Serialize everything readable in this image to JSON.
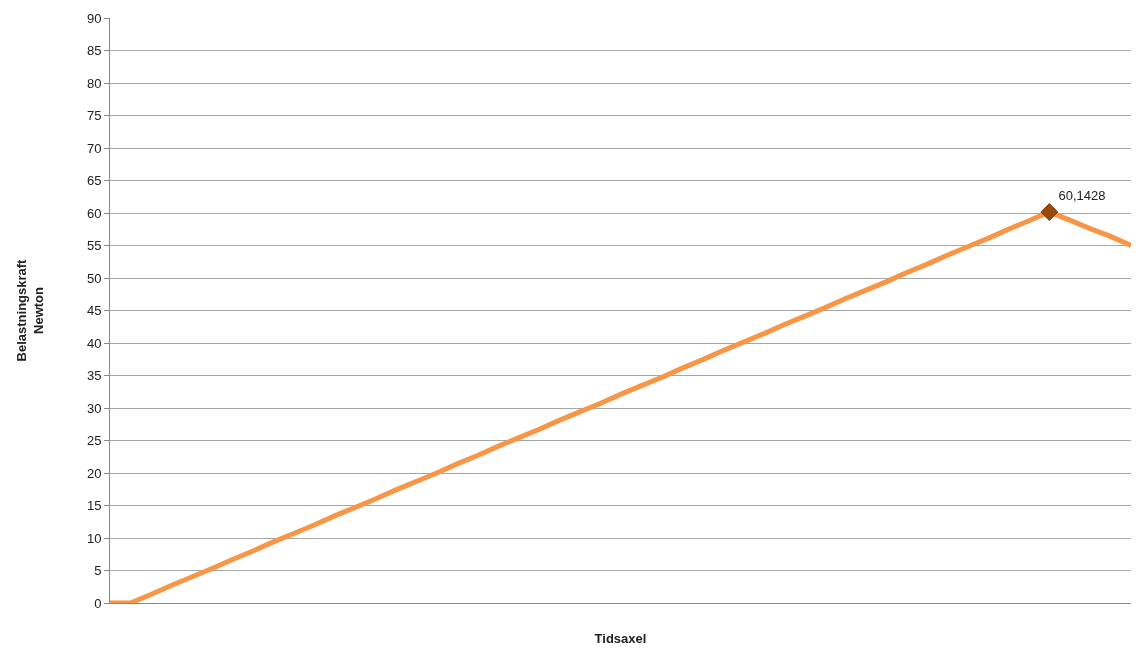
{
  "chart_data": {
    "type": "line",
    "xlabel": "Tidsaxel",
    "ylabel": "Belastningskraft\nNewton",
    "categories": [
      null,
      null,
      null,
      null,
      null,
      null,
      null,
      null,
      null,
      null,
      null,
      null,
      null,
      null,
      null,
      null,
      null,
      null,
      null,
      null,
      null,
      null,
      null,
      null,
      null,
      null,
      null,
      null,
      null,
      null,
      null,
      null,
      null,
      null,
      null,
      null,
      null,
      null,
      null,
      null,
      null,
      null,
      null,
      null,
      null,
      null,
      null,
      null,
      null,
      null,
      null
    ],
    "series": [
      {
        "color": "#f79646",
        "values": [
          0,
          0,
          1.3,
          2.7,
          4.0,
          5.3,
          6.7,
          8.0,
          9.4,
          10.7,
          12.0,
          13.4,
          14.7,
          16.0,
          17.4,
          18.7,
          20.0,
          21.4,
          22.7,
          24.1,
          25.4,
          26.7,
          28.1,
          29.4,
          30.7,
          32.1,
          33.4,
          34.7,
          36.1,
          37.4,
          38.8,
          40.1,
          41.4,
          42.8,
          44.1,
          45.4,
          46.8,
          48.1,
          49.4,
          50.8,
          52.1,
          53.5,
          54.8,
          56.1,
          57.5,
          58.8,
          60.1428,
          58.9,
          57.6,
          56.4,
          55.0
        ]
      },
      {
        "type": "scatter",
        "color": "#984807",
        "marker": "diamond",
        "values": [
          null,
          null,
          null,
          null,
          null,
          null,
          null,
          null,
          null,
          null,
          null,
          null,
          null,
          null,
          null,
          null,
          null,
          null,
          null,
          null,
          null,
          null,
          null,
          null,
          null,
          null,
          null,
          null,
          null,
          null,
          null,
          null,
          null,
          null,
          null,
          null,
          null,
          null,
          null,
          null,
          null,
          null,
          null,
          null,
          null,
          null,
          60.1428,
          null,
          null,
          null,
          null
        ],
        "value_labels": [
          null,
          null,
          null,
          null,
          null,
          null,
          null,
          null,
          null,
          null,
          null,
          null,
          null,
          null,
          null,
          null,
          null,
          null,
          null,
          null,
          null,
          null,
          null,
          null,
          null,
          null,
          null,
          null,
          null,
          null,
          null,
          null,
          null,
          null,
          null,
          null,
          null,
          null,
          null,
          null,
          null,
          null,
          null,
          null,
          null,
          null,
          "60,1428",
          null,
          null,
          null,
          null
        ]
      }
    ],
    "ylim": [
      0,
      90
    ],
    "yticks": [
      0,
      5,
      10,
      15,
      20,
      25,
      30,
      35,
      40,
      45,
      50,
      55,
      60,
      65,
      70,
      75,
      80,
      85,
      90
    ],
    "grid": "y"
  }
}
